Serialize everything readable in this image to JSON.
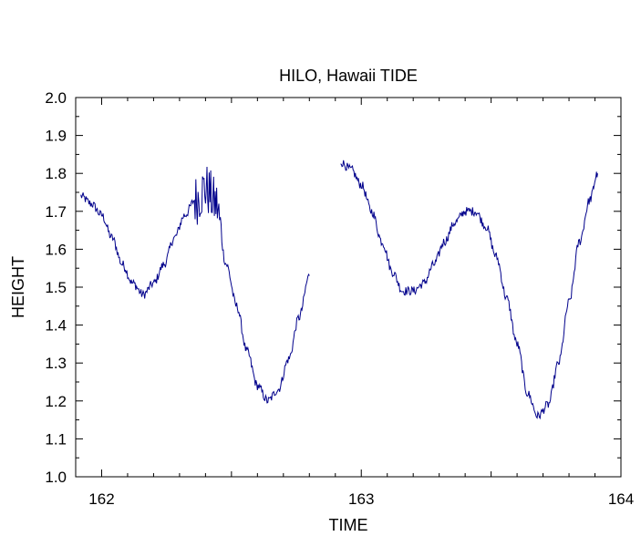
{
  "chart_data": {
    "type": "line",
    "title": "HILO, Hawaii TIDE",
    "xlabel": "TIME",
    "ylabel": "HEIGHT",
    "xlim": [
      161.9,
      164.0
    ],
    "ylim": [
      1.0,
      2.0
    ],
    "x_major_ticks": [
      162,
      163,
      164
    ],
    "x_tick_labels": [
      "162",
      "163",
      "164"
    ],
    "y_major_ticks": [
      1.0,
      1.1,
      1.2,
      1.3,
      1.4,
      1.5,
      1.6,
      1.7,
      1.8,
      1.9,
      2.0
    ],
    "y_tick_labels": [
      "1.0",
      "1.1",
      "1.2",
      "1.3",
      "1.4",
      "1.5",
      "1.6",
      "1.7",
      "1.8",
      "1.9",
      "2.0"
    ],
    "grid": false,
    "line_color": "#00008b",
    "series": [
      {
        "points": [
          [
            161.92,
            1.74
          ],
          [
            161.96,
            1.72
          ],
          [
            162.0,
            1.69
          ],
          [
            162.04,
            1.63
          ],
          [
            162.08,
            1.56
          ],
          [
            162.12,
            1.51
          ],
          [
            162.16,
            1.48
          ],
          [
            162.2,
            1.51
          ],
          [
            162.24,
            1.56
          ],
          [
            162.28,
            1.63
          ],
          [
            162.32,
            1.69
          ],
          [
            162.36,
            1.73
          ],
          [
            162.4,
            1.76
          ],
          [
            162.44,
            1.72
          ],
          [
            162.48,
            1.56
          ],
          [
            162.52,
            1.45
          ],
          [
            162.56,
            1.33
          ],
          [
            162.6,
            1.24
          ],
          [
            162.64,
            1.2
          ],
          [
            162.68,
            1.23
          ],
          [
            162.72,
            1.31
          ],
          [
            162.76,
            1.42
          ],
          [
            162.8,
            1.53
          ]
        ]
      },
      {
        "points": [
          [
            162.92,
            1.83
          ],
          [
            162.96,
            1.81
          ],
          [
            163.0,
            1.77
          ],
          [
            163.04,
            1.7
          ],
          [
            163.08,
            1.62
          ],
          [
            163.12,
            1.54
          ],
          [
            163.16,
            1.49
          ],
          [
            163.2,
            1.49
          ],
          [
            163.24,
            1.51
          ],
          [
            163.28,
            1.56
          ],
          [
            163.32,
            1.62
          ],
          [
            163.36,
            1.67
          ],
          [
            163.4,
            1.7
          ],
          [
            163.44,
            1.7
          ],
          [
            163.48,
            1.66
          ],
          [
            163.52,
            1.58
          ],
          [
            163.56,
            1.47
          ],
          [
            163.6,
            1.35
          ],
          [
            163.64,
            1.22
          ],
          [
            163.68,
            1.16
          ],
          [
            163.72,
            1.19
          ],
          [
            163.76,
            1.3
          ],
          [
            163.8,
            1.46
          ],
          [
            163.84,
            1.62
          ],
          [
            163.88,
            1.73
          ],
          [
            163.91,
            1.8
          ]
        ]
      }
    ],
    "noise": [
      {
        "series": 0,
        "x_from": 162.36,
        "x_to": 162.46,
        "amplitude": 0.07
      },
      {
        "series": 0,
        "x_from": 161.92,
        "x_to": 162.8,
        "amplitude": 0.012
      },
      {
        "series": 1,
        "x_from": 162.92,
        "x_to": 163.91,
        "amplitude": 0.012
      }
    ]
  }
}
